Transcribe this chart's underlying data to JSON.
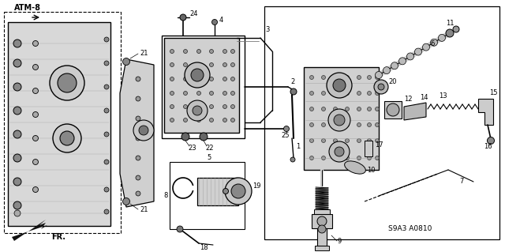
{
  "bg_color": "#ffffff",
  "atm_label": "ATM-8",
  "fr_label": "FR.",
  "code_label": "S9A3 A0810",
  "figsize": [
    6.4,
    3.19
  ],
  "dpi": 100,
  "lc": "#000000",
  "gray_light": "#cccccc",
  "gray_mid": "#999999",
  "gray_dark": "#555555",
  "gray_body": "#b0b0b0"
}
